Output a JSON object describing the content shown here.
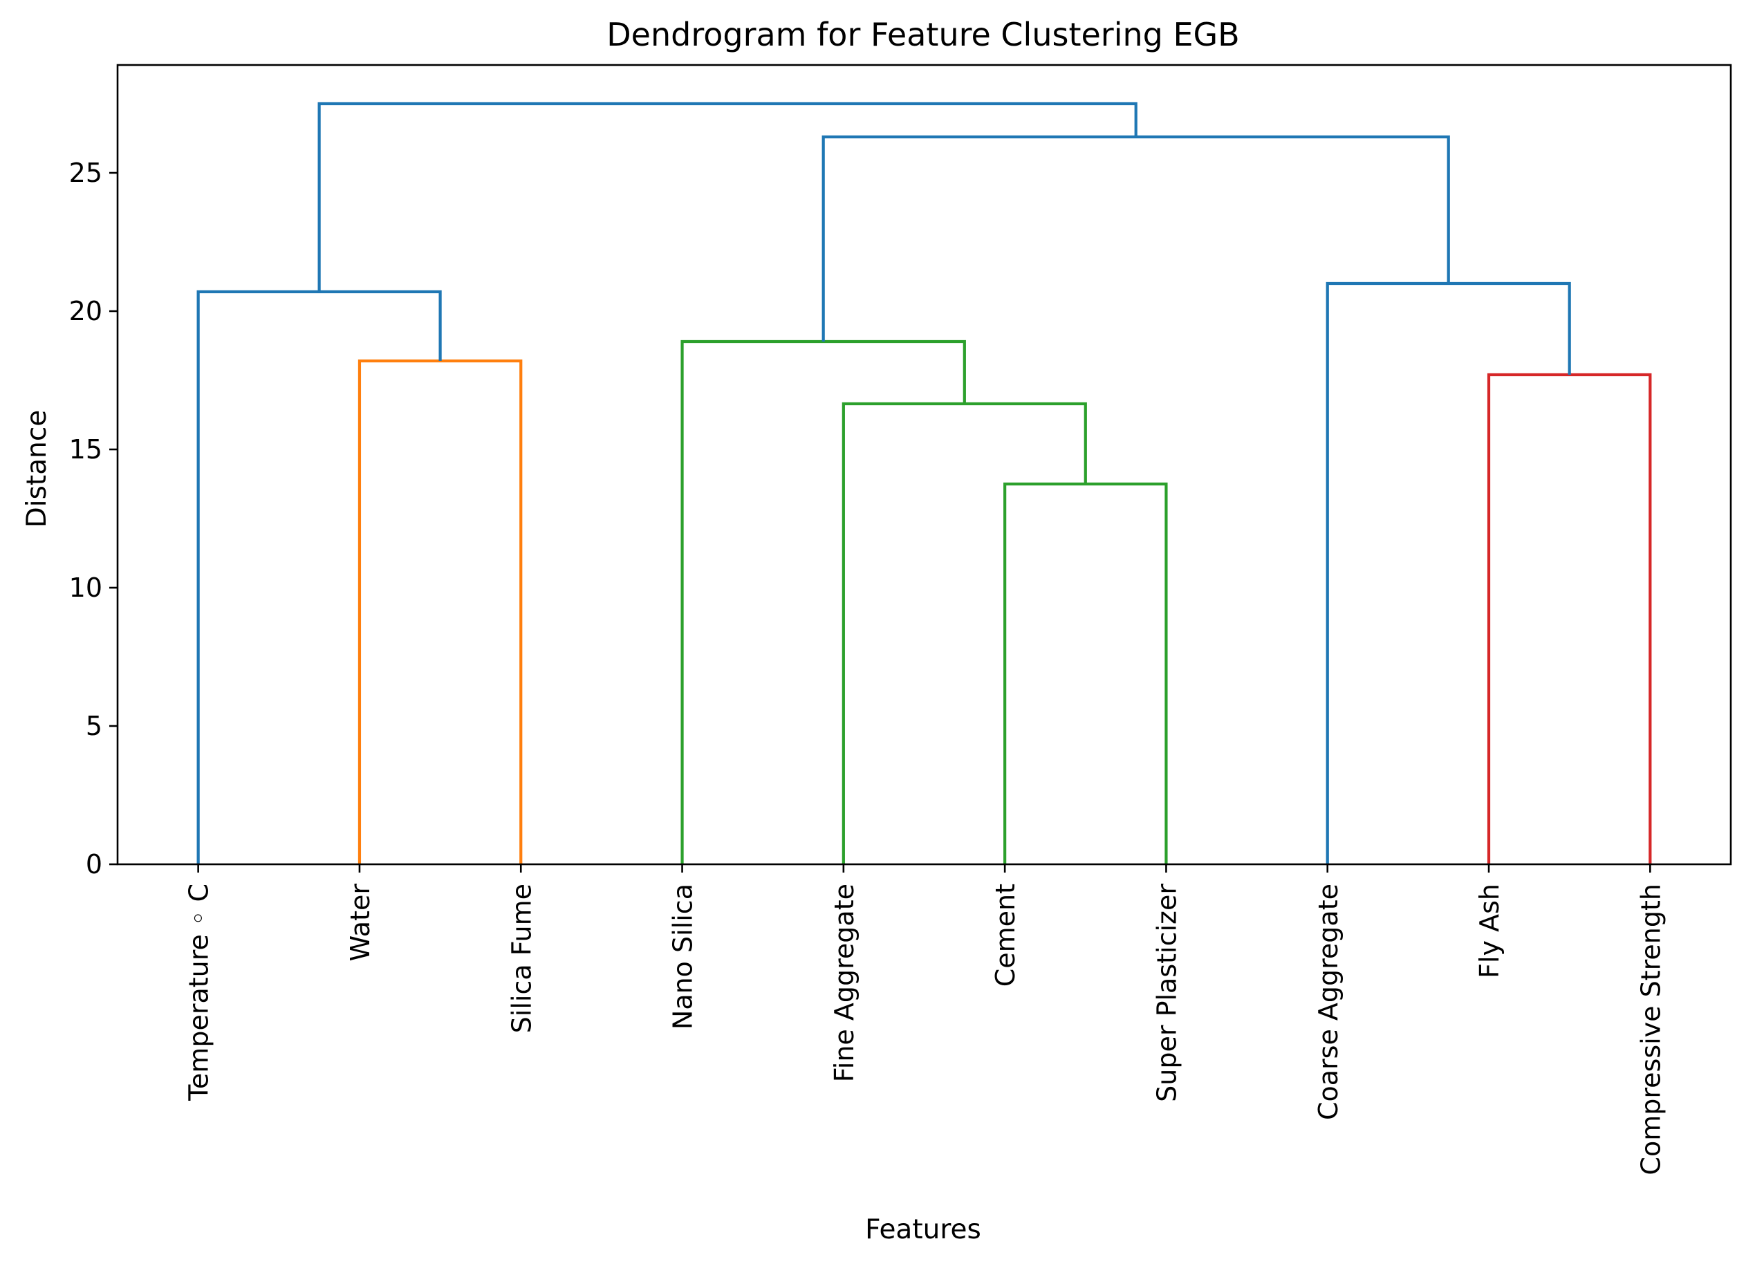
{
  "chart_data": {
    "type": "dendrogram",
    "title": "Dendrogram for Feature Clustering EGB",
    "xlabel": "Features",
    "ylabel": "Distance",
    "ylim": [
      0,
      28.9
    ],
    "yticks": [
      0,
      5,
      10,
      15,
      20,
      25
    ],
    "grid": false,
    "leaves": [
      "Temperature ◦ C",
      "Water",
      "Silica Fume",
      "Nano Silica",
      "Fine Aggregate",
      "Cement",
      "Super Plasticizer",
      "Coarse Aggregate",
      "Fly Ash",
      "Compressive Strength"
    ],
    "links": [
      {
        "xs": [
          1,
          1,
          2,
          2
        ],
        "ys": [
          0,
          18.2,
          18.2,
          0
        ],
        "color": "#ff7f0e"
      },
      {
        "xs": [
          0,
          0,
          1.5,
          1.5
        ],
        "ys": [
          0,
          20.7,
          20.7,
          18.2
        ],
        "color": "#1f77b4"
      },
      {
        "xs": [
          5,
          5,
          6,
          6
        ],
        "ys": [
          0,
          13.75,
          13.75,
          0
        ],
        "color": "#2ca02c"
      },
      {
        "xs": [
          4,
          4,
          5.5,
          5.5
        ],
        "ys": [
          0,
          16.65,
          16.65,
          13.75
        ],
        "color": "#2ca02c"
      },
      {
        "xs": [
          3,
          3,
          4.75,
          4.75
        ],
        "ys": [
          0,
          18.9,
          18.9,
          16.65
        ],
        "color": "#2ca02c"
      },
      {
        "xs": [
          8,
          8,
          9,
          9
        ],
        "ys": [
          0,
          17.7,
          17.7,
          0
        ],
        "color": "#d62728"
      },
      {
        "xs": [
          7,
          7,
          8.5,
          8.5
        ],
        "ys": [
          0,
          21.0,
          21.0,
          17.7
        ],
        "color": "#1f77b4"
      },
      {
        "xs": [
          3.875,
          3.875,
          7.75,
          7.75
        ],
        "ys": [
          18.9,
          26.3,
          26.3,
          21.0
        ],
        "color": "#1f77b4"
      },
      {
        "xs": [
          0.75,
          0.75,
          5.8125,
          5.8125
        ],
        "ys": [
          20.7,
          27.5,
          27.5,
          26.3
        ],
        "color": "#1f77b4"
      }
    ]
  }
}
